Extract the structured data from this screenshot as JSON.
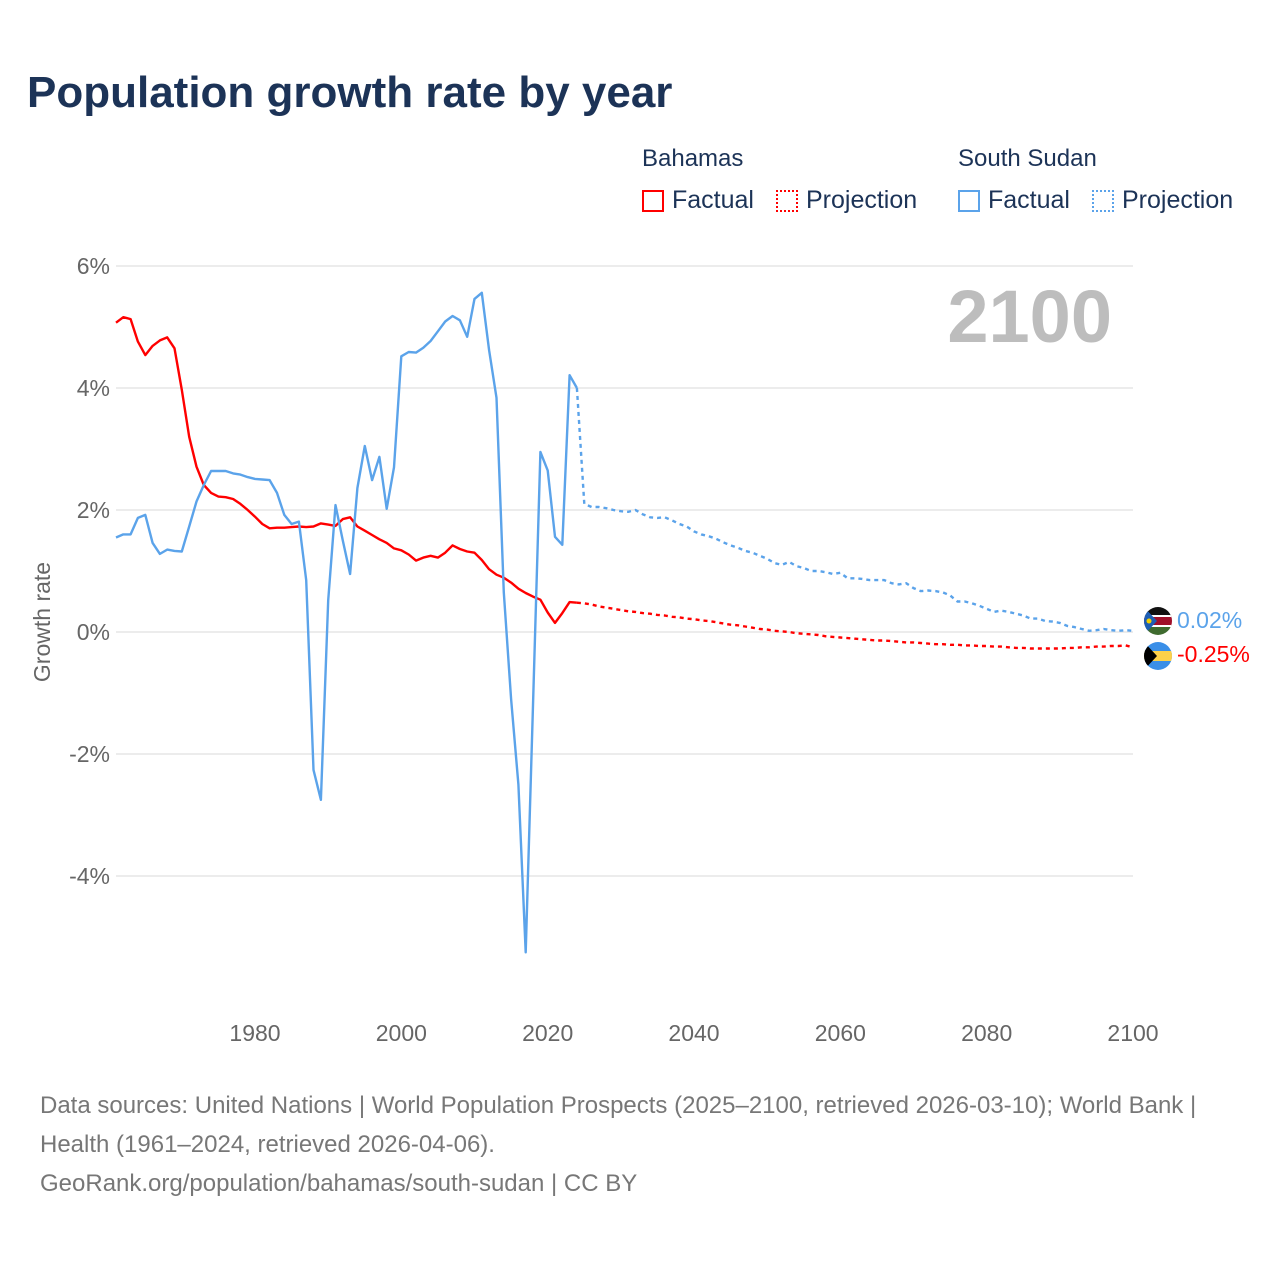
{
  "title": "Population growth rate by year",
  "legend": {
    "groups": [
      {
        "name": "Bahamas",
        "factual": "Factual",
        "projection": "Projection",
        "color": "#ff0000"
      },
      {
        "name": "South Sudan",
        "factual": "Factual",
        "projection": "Projection",
        "color": "#5ba3ea"
      }
    ]
  },
  "year_label": "2100",
  "end_labels": {
    "south_sudan": "0.02%",
    "bahamas": "-0.25%"
  },
  "footer": {
    "sources": "Data sources: United Nations | World Population Prospects (2025–2100, retrieved 2026-03-10); World Bank | Health (1961–2024, retrieved 2026-04-06).",
    "credit": "GeoRank.org/population/bahamas/south-sudan | CC BY"
  },
  "chart_data": {
    "type": "line",
    "title": "Population growth rate by year",
    "xlabel": "",
    "ylabel": "Growth rate",
    "xlim": [
      1961,
      2100
    ],
    "ylim": [
      -6,
      6
    ],
    "grid": true,
    "x_ticks": [
      1980,
      2000,
      2020,
      2040,
      2060,
      2080,
      2100
    ],
    "x_tick_labels": [
      "1980",
      "2000",
      "2020",
      "2040",
      "2060",
      "2080",
      "2100"
    ],
    "y_ticks": [
      6,
      4,
      2,
      0,
      -2,
      -4
    ],
    "y_tick_labels": [
      "6%",
      "4%",
      "2%",
      "0%",
      "-2%",
      "-4%"
    ],
    "legend_position": "top-right",
    "series": [
      {
        "name": "Bahamas Factual",
        "color": "#ff0000",
        "style": "solid",
        "x_start": 1961,
        "values": [
          5.07,
          5.16,
          5.13,
          4.76,
          4.54,
          4.69,
          4.78,
          4.83,
          4.65,
          3.97,
          3.2,
          2.71,
          2.41,
          2.28,
          2.22,
          2.21,
          2.18,
          2.1,
          2.0,
          1.89,
          1.77,
          1.7,
          1.71,
          1.71,
          1.72,
          1.73,
          1.72,
          1.73,
          1.78,
          1.76,
          1.74,
          1.85,
          1.88,
          1.73,
          1.66,
          1.59,
          1.52,
          1.46,
          1.37,
          1.34,
          1.27,
          1.17,
          1.22,
          1.25,
          1.22,
          1.3,
          1.42,
          1.36,
          1.32,
          1.3,
          1.18,
          1.03,
          0.94,
          0.89,
          0.81,
          0.71,
          0.64,
          0.58,
          0.53,
          0.32,
          0.15,
          0.31,
          0.49,
          0.48
        ]
      },
      {
        "name": "Bahamas Projection",
        "color": "#ff0000",
        "style": "dotted",
        "x_start": 2025,
        "values": [
          0.47,
          0.45,
          0.42,
          0.4,
          0.38,
          0.36,
          0.34,
          0.33,
          0.31,
          0.3,
          0.28,
          0.27,
          0.25,
          0.24,
          0.22,
          0.21,
          0.19,
          0.18,
          0.16,
          0.14,
          0.12,
          0.11,
          0.09,
          0.07,
          0.05,
          0.04,
          0.02,
          0.01,
          0.0,
          -0.02,
          -0.03,
          -0.04,
          -0.05,
          -0.07,
          -0.08,
          -0.09,
          -0.1,
          -0.11,
          -0.12,
          -0.13,
          -0.14,
          -0.14,
          -0.15,
          -0.16,
          -0.17,
          -0.17,
          -0.18,
          -0.19,
          -0.2,
          -0.2,
          -0.21,
          -0.21,
          -0.22,
          -0.22,
          -0.23,
          -0.23,
          -0.24,
          -0.24,
          -0.25,
          -0.26,
          -0.26,
          -0.27,
          -0.27,
          -0.27,
          -0.27,
          -0.27,
          -0.26,
          -0.26,
          -0.25,
          -0.25,
          -0.24,
          -0.24,
          -0.23,
          -0.23,
          -0.22,
          -0.25
        ]
      },
      {
        "name": "South Sudan Factual",
        "color": "#5ba3ea",
        "style": "solid",
        "x_start": 1961,
        "values": [
          1.55,
          1.6,
          1.6,
          1.87,
          1.92,
          1.46,
          1.28,
          1.35,
          1.33,
          1.32,
          1.73,
          2.14,
          2.41,
          2.64,
          2.64,
          2.64,
          2.6,
          2.58,
          2.54,
          2.51,
          2.5,
          2.49,
          2.28,
          1.92,
          1.77,
          1.81,
          0.85,
          -2.26,
          -2.75,
          0.52,
          2.08,
          1.5,
          0.95,
          2.36,
          3.05,
          2.49,
          2.87,
          2.02,
          2.7,
          4.52,
          4.59,
          4.58,
          4.66,
          4.77,
          4.93,
          5.09,
          5.18,
          5.11,
          4.84,
          5.46,
          5.56,
          4.62,
          3.84,
          0.65,
          -1.1,
          -2.5,
          -5.25,
          -1.2,
          2.95,
          2.65,
          1.56,
          1.43,
          4.21,
          4.0
        ]
      },
      {
        "name": "South Sudan Projection",
        "color": "#5ba3ea",
        "style": "dotted",
        "x_start": 2025,
        "values": [
          2.1,
          2.05,
          2.05,
          2.03,
          2.0,
          1.98,
          1.97,
          2.0,
          1.93,
          1.88,
          1.87,
          1.88,
          1.83,
          1.77,
          1.73,
          1.65,
          1.6,
          1.57,
          1.53,
          1.47,
          1.42,
          1.38,
          1.33,
          1.3,
          1.25,
          1.2,
          1.13,
          1.1,
          1.15,
          1.08,
          1.05,
          1.0,
          1.0,
          0.98,
          0.95,
          0.97,
          0.88,
          0.88,
          0.87,
          0.85,
          0.85,
          0.85,
          0.8,
          0.78,
          0.8,
          0.72,
          0.67,
          0.68,
          0.67,
          0.65,
          0.6,
          0.5,
          0.5,
          0.47,
          0.43,
          0.38,
          0.33,
          0.35,
          0.33,
          0.3,
          0.27,
          0.22,
          0.22,
          0.18,
          0.17,
          0.15,
          0.1,
          0.08,
          0.05,
          0.02,
          0.03,
          0.05,
          0.03,
          0.02,
          0.03,
          0.02
        ]
      }
    ]
  }
}
